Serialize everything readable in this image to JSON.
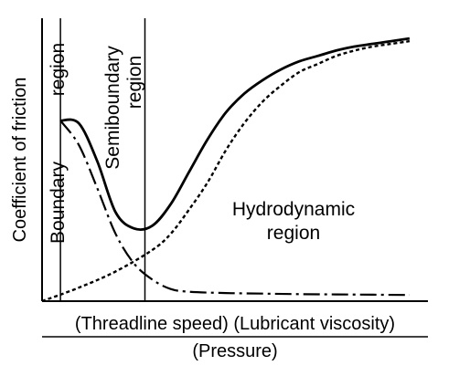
{
  "chart_data": {
    "type": "line",
    "title": "",
    "ylabel": "Coefficient of friction",
    "xlabel_top": "(Threadline speed) (Lubricant viscosity)",
    "xlabel_bottom": "(Pressure)",
    "grid": false,
    "legend": "none",
    "regions": [
      {
        "id": "boundary",
        "line1": "Boundary",
        "line2": "region"
      },
      {
        "id": "semiboundary",
        "line1": "Semiboundary",
        "line2": "region"
      },
      {
        "id": "hydrodynamic",
        "line1": "Hydrodynamic",
        "line2": "region"
      }
    ],
    "series": [
      {
        "id": "total",
        "style": "solid",
        "x": [
          0.05,
          0.1,
          0.15,
          0.2,
          0.25,
          0.3,
          0.35,
          0.4,
          0.45,
          0.5,
          0.55,
          0.6,
          0.65,
          0.7,
          0.75,
          0.8,
          0.85,
          0.9,
          0.95,
          1.0
        ],
        "y": [
          0.67,
          0.66,
          0.52,
          0.33,
          0.27,
          0.28,
          0.36,
          0.48,
          0.6,
          0.7,
          0.77,
          0.82,
          0.86,
          0.89,
          0.91,
          0.93,
          0.945,
          0.955,
          0.965,
          0.975
        ]
      },
      {
        "id": "boundary-component",
        "style": "dash-dot",
        "x": [
          0.05,
          0.1,
          0.15,
          0.2,
          0.25,
          0.3,
          0.35,
          0.4,
          0.5,
          0.6,
          0.7,
          0.8,
          0.9,
          1.0
        ],
        "y": [
          0.67,
          0.58,
          0.42,
          0.25,
          0.14,
          0.08,
          0.045,
          0.035,
          0.03,
          0.028,
          0.026,
          0.025,
          0.024,
          0.023
        ]
      },
      {
        "id": "hydrodynamic-component",
        "style": "dotted",
        "x": [
          0.0,
          0.1,
          0.2,
          0.3,
          0.35,
          0.4,
          0.45,
          0.5,
          0.55,
          0.6,
          0.65,
          0.7,
          0.75,
          0.8,
          0.85,
          0.9,
          0.95,
          1.0
        ],
        "y": [
          0.0,
          0.05,
          0.11,
          0.19,
          0.25,
          0.34,
          0.44,
          0.56,
          0.66,
          0.74,
          0.8,
          0.85,
          0.88,
          0.91,
          0.93,
          0.945,
          0.955,
          0.965
        ]
      }
    ],
    "region_dividers_x": [
      0.05,
      0.28
    ],
    "xlim": [
      0,
      1.05
    ],
    "ylim": [
      0,
      1.05
    ]
  }
}
